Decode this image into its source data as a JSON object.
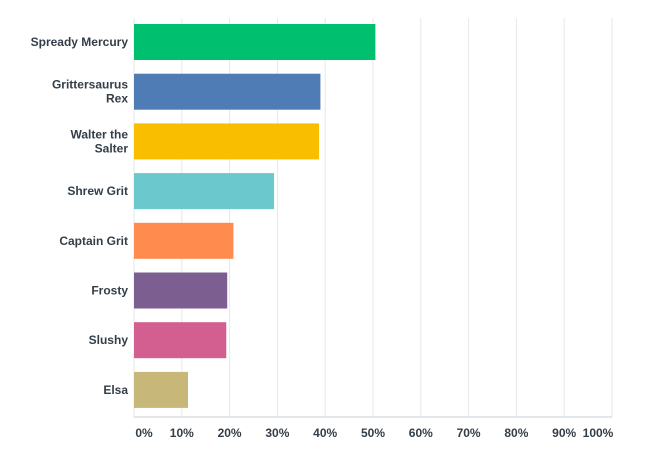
{
  "chart_data": {
    "type": "bar",
    "orientation": "horizontal",
    "categories": [
      "Spready Mercury",
      "Grittersaurus Rex",
      "Walter the Salter",
      "Shrew Grit",
      "Captain Grit",
      "Frosty",
      "Slushy",
      "Elsa"
    ],
    "category_lines": [
      [
        "Spready Mercury"
      ],
      [
        "Grittersaurus",
        "Rex"
      ],
      [
        "Walter the",
        "Salter"
      ],
      [
        "Shrew Grit"
      ],
      [
        "Captain Grit"
      ],
      [
        "Frosty"
      ],
      [
        "Slushy"
      ],
      [
        "Elsa"
      ]
    ],
    "values": [
      50.5,
      39.0,
      38.7,
      29.3,
      20.8,
      19.5,
      19.3,
      11.3
    ],
    "colors": [
      "#00bf6f",
      "#507cb6",
      "#f9be00",
      "#6bc8cd",
      "#ff8b4f",
      "#7d5e90",
      "#d25f90",
      "#c7b879"
    ],
    "xlim": [
      0,
      100
    ],
    "x_ticks": [
      "0%",
      "10%",
      "20%",
      "30%",
      "40%",
      "50%",
      "60%",
      "70%",
      "80%",
      "90%",
      "100%"
    ],
    "grid": true,
    "legend": "none",
    "title": "",
    "xlabel": "",
    "ylabel": ""
  }
}
